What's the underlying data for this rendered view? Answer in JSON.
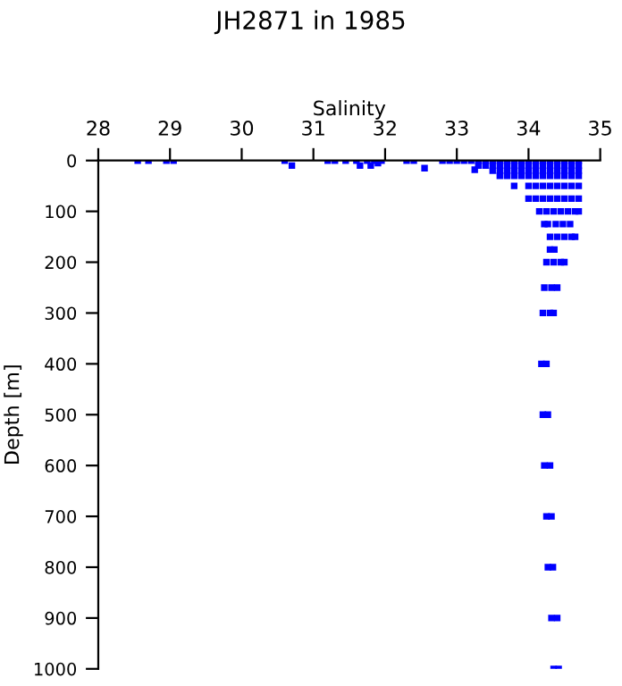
{
  "chart_data": {
    "type": "scatter",
    "title": "JH2871 in 1985",
    "xlabel": "Salinity",
    "ylabel": "Depth [m]",
    "xlim": [
      28,
      35
    ],
    "xticks": [
      28,
      29,
      30,
      31,
      32,
      33,
      34,
      35
    ],
    "ylim": [
      1000,
      0
    ],
    "yticks": [
      0,
      100,
      200,
      300,
      400,
      500,
      600,
      700,
      800,
      900,
      1000
    ],
    "grid": false,
    "marker": "square",
    "series": [
      {
        "color": "#0000ff",
        "x": [
          28.55,
          28.7,
          28.95,
          29.05,
          30.6,
          31.2,
          31.3,
          31.45,
          31.6,
          31.75,
          31.85,
          31.95,
          32.3,
          32.4,
          32.8,
          32.9,
          30.7,
          31.65,
          31.8,
          32.55,
          31.9,
          33.25,
          33.0,
          33.1,
          33.2,
          33.3,
          33.4,
          33.5,
          33.6,
          33.7,
          33.8,
          33.9,
          34.0,
          34.1,
          34.2,
          34.3,
          34.4,
          34.5,
          34.6,
          34.7,
          33.3,
          33.4,
          33.5,
          33.6,
          33.7,
          33.8,
          33.9,
          34.0,
          34.1,
          34.2,
          34.3,
          34.4,
          34.5,
          34.6,
          34.7,
          33.5,
          33.6,
          33.7,
          33.8,
          33.9,
          34.0,
          34.1,
          34.2,
          34.3,
          34.4,
          34.5,
          34.6,
          34.7,
          33.6,
          33.7,
          33.8,
          33.9,
          34.0,
          34.1,
          34.2,
          34.3,
          34.4,
          34.5,
          34.6,
          34.7,
          33.8,
          34.0,
          34.1,
          34.2,
          34.3,
          34.4,
          34.5,
          34.6,
          34.7,
          34.0,
          34.1,
          34.2,
          34.3,
          34.4,
          34.5,
          34.6,
          34.7,
          34.15,
          34.25,
          34.35,
          34.45,
          34.55,
          34.65,
          34.7,
          34.22,
          34.27,
          34.38,
          34.48,
          34.58,
          34.3,
          34.4,
          34.5,
          34.6,
          34.65,
          34.3,
          34.36,
          34.25,
          34.35,
          34.45,
          34.5,
          34.22,
          34.32,
          34.4,
          34.2,
          34.3,
          34.35,
          34.18,
          34.25,
          34.2,
          34.27,
          34.22,
          34.3,
          34.25,
          34.32,
          34.27,
          34.34,
          34.32,
          34.4,
          34.35,
          34.42
        ],
        "values": [
          0,
          0,
          0,
          0,
          0,
          0,
          0,
          0,
          0,
          0,
          0,
          0,
          0,
          0,
          0,
          0,
          10,
          10,
          10,
          15,
          5,
          18,
          0,
          0,
          0,
          0,
          0,
          0,
          0,
          0,
          0,
          0,
          0,
          0,
          0,
          0,
          0,
          0,
          0,
          0,
          10,
          10,
          10,
          10,
          10,
          10,
          10,
          10,
          10,
          10,
          10,
          10,
          10,
          10,
          10,
          20,
          20,
          20,
          20,
          20,
          20,
          20,
          20,
          20,
          20,
          20,
          20,
          20,
          30,
          30,
          30,
          30,
          30,
          30,
          30,
          30,
          30,
          30,
          30,
          30,
          50,
          50,
          50,
          50,
          50,
          50,
          50,
          50,
          50,
          75,
          75,
          75,
          75,
          75,
          75,
          75,
          75,
          100,
          100,
          100,
          100,
          100,
          100,
          100,
          125,
          125,
          125,
          125,
          125,
          150,
          150,
          150,
          150,
          150,
          175,
          175,
          200,
          200,
          200,
          200,
          250,
          250,
          250,
          300,
          300,
          300,
          400,
          400,
          500,
          500,
          600,
          600,
          700,
          700,
          800,
          800,
          900,
          900,
          1000,
          1000
        ]
      }
    ]
  }
}
